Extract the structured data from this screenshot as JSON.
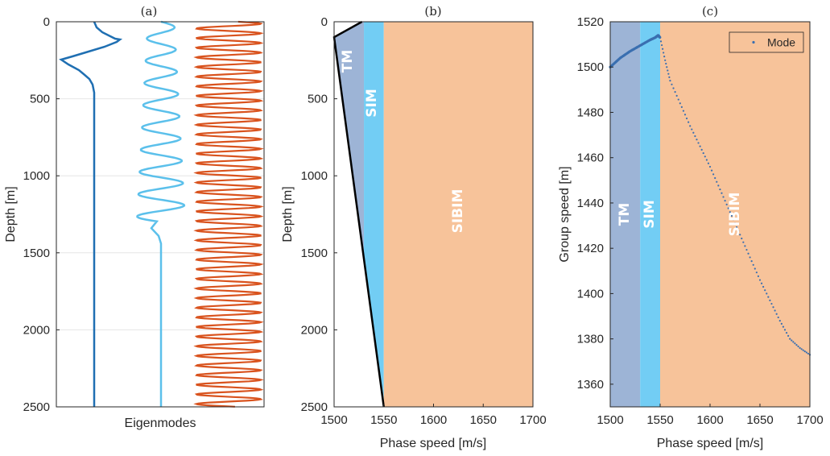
{
  "chart_data": [
    {
      "panel": "a",
      "title": "(a)",
      "type": "line",
      "xlabel": "Eigenmodes",
      "ylabel": "Depth [m]",
      "ylim": [
        0,
        2500
      ],
      "y_reversed": true,
      "yticks": [
        "0",
        "500",
        "1000",
        "1500",
        "2000",
        "2500"
      ],
      "grid": "horizontal",
      "series": [
        {
          "color": "#1f6fb2",
          "depth_cycles": 1.5,
          "note_shape": "oscillates only in upper ~400 m then flat"
        },
        {
          "color": "#5bc0eb",
          "depth_cycles": 9,
          "note_shape": "oscillates down to ~1300 m then flat"
        },
        {
          "color": "#d9531e",
          "depth_cycles": 40,
          "note_shape": "oscillates over full depth"
        }
      ]
    },
    {
      "panel": "b",
      "title": "(b)",
      "type": "area",
      "xlabel": "Phase speed [m/s]",
      "ylabel": "Depth [m]",
      "xlim": [
        1500,
        1700
      ],
      "ylim": [
        0,
        2500
      ],
      "y_reversed": true,
      "xticks": [
        "1500",
        "1550",
        "1600",
        "1650",
        "1700"
      ],
      "yticks": [
        "0",
        "500",
        "1000",
        "1500",
        "2000",
        "2500"
      ],
      "regions": [
        {
          "label": "TM",
          "x": [
            1500,
            1530
          ],
          "color": "#9db4d6"
        },
        {
          "label": "SIM",
          "x": [
            1530,
            1550
          ],
          "color": "#72cdf4"
        },
        {
          "label": "SIBIM",
          "x": [
            1550,
            1700
          ],
          "color": "#f7c39a"
        }
      ],
      "sound_speed_profile": {
        "depth": [
          0,
          100,
          2500
        ],
        "speed": [
          1528,
          1500,
          1550
        ],
        "color": "#000000"
      }
    },
    {
      "panel": "c",
      "title": "(c)",
      "type": "scatter",
      "xlabel": "Phase speed [m/s]",
      "ylabel": "Group speed [m]",
      "xlim": [
        1500,
        1700
      ],
      "ylim": [
        1350,
        1520
      ],
      "xticks": [
        "1500",
        "1550",
        "1600",
        "1650",
        "1700"
      ],
      "yticks": [
        "1520",
        "1500",
        "1480",
        "1460",
        "1440",
        "1420",
        "1400",
        "1380",
        "1360"
      ],
      "legend": {
        "entries": [
          "Mode"
        ],
        "placement": "top-right"
      },
      "regions": [
        {
          "label": "TM",
          "x": [
            1500,
            1530
          ],
          "color": "#9db4d6"
        },
        {
          "label": "SIM",
          "x": [
            1530,
            1550
          ],
          "color": "#72cdf4"
        },
        {
          "label": "SIBIM",
          "x": [
            1550,
            1700
          ],
          "color": "#f7c39a"
        }
      ],
      "series": [
        {
          "name": "Mode",
          "color": "#3a6fb0",
          "x": [
            1500,
            1510,
            1520,
            1530,
            1540,
            1545,
            1548,
            1550,
            1555,
            1560,
            1570,
            1580,
            1590,
            1600,
            1610,
            1620,
            1630,
            1640,
            1650,
            1660,
            1670,
            1680,
            1690,
            1700
          ],
          "y": [
            1500,
            1504,
            1507,
            1509.5,
            1512,
            1513,
            1514,
            1513,
            1503,
            1494,
            1484,
            1474,
            1465,
            1456,
            1446,
            1436,
            1426,
            1416,
            1406,
            1397,
            1388,
            1380,
            1376,
            1373
          ]
        }
      ]
    }
  ]
}
